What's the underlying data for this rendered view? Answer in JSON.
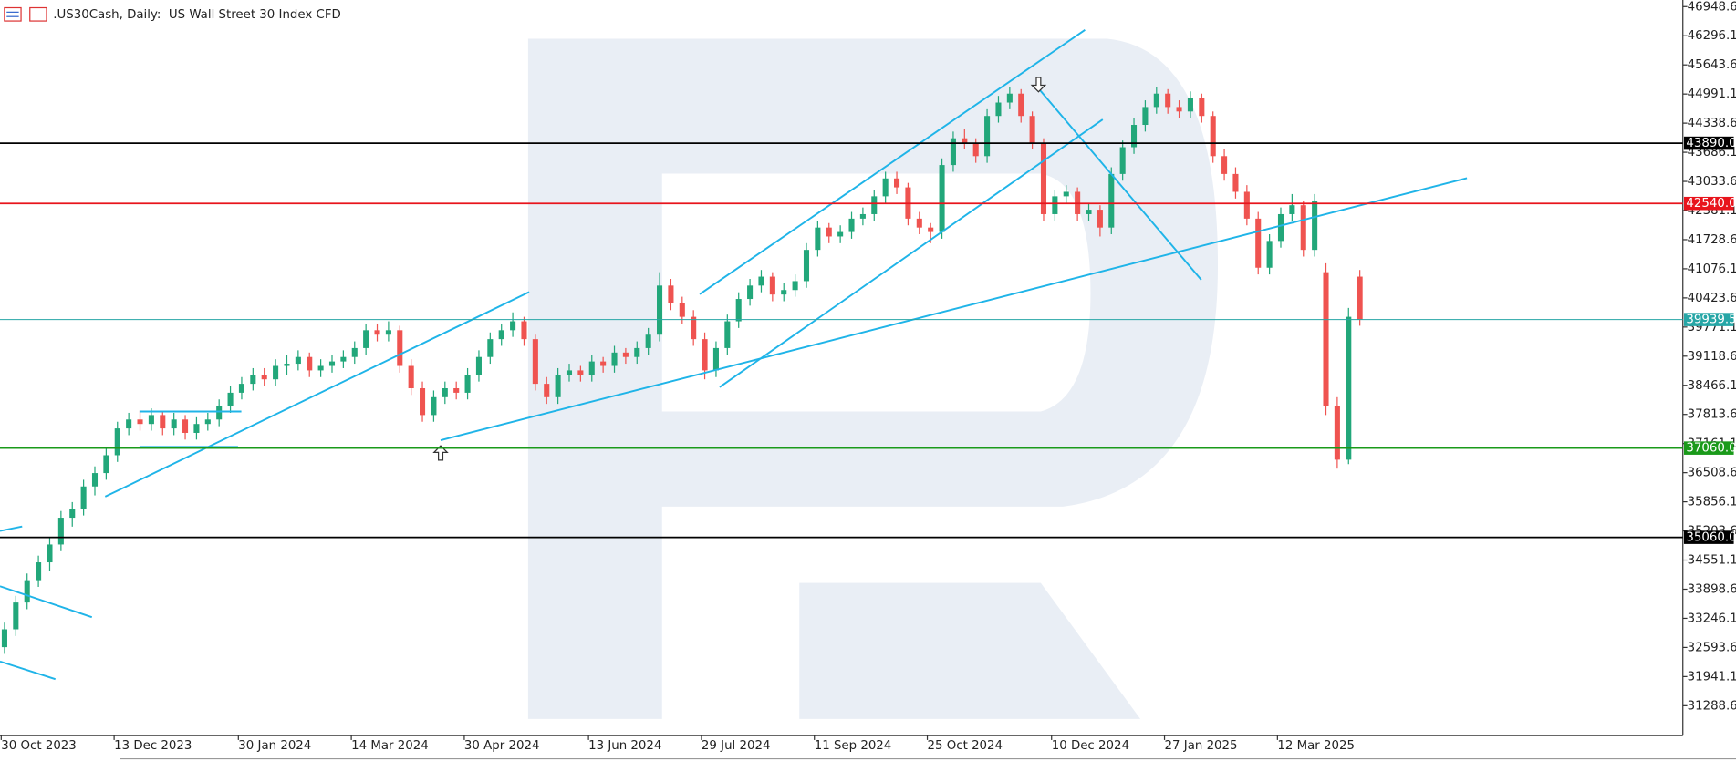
{
  "chart_data": {
    "type": "candlestick",
    "title": ".US30Cash, Daily:  US Wall Street 30 Index CFD",
    "up_color": "#22a77a",
    "down_color": "#ef5350",
    "ylim": [
      30620,
      47097
    ],
    "yticks": [
      46948.6,
      46296.1,
      45643.6,
      44991.1,
      44338.6,
      43686.1,
      43033.6,
      42381.1,
      41728.6,
      41076.1,
      40423.6,
      39771.1,
      39118.6,
      38466.1,
      37813.6,
      37161.1,
      36508.6,
      35856.1,
      35203.6,
      34551.1,
      33898.6,
      33246.1,
      32593.6,
      31941.1,
      31288.6
    ],
    "xlim": [
      -0.4,
      148.6
    ],
    "xticks": [
      {
        "value": 0,
        "label": "30 Oct 2023"
      },
      {
        "value": 10,
        "label": "13 Dec 2023"
      },
      {
        "value": 21,
        "label": "30 Jan 2024"
      },
      {
        "value": 31,
        "label": "14 Mar 2024"
      },
      {
        "value": 41,
        "label": "30 Apr 2024"
      },
      {
        "value": 52,
        "label": "13 Jun 2024"
      },
      {
        "value": 62,
        "label": "29 Jul 2024"
      },
      {
        "value": 72,
        "label": "11 Sep 2024"
      },
      {
        "value": 82,
        "label": "25 Oct 2024"
      },
      {
        "value": 93,
        "label": "10 Dec 2024"
      },
      {
        "value": 103,
        "label": "27 Jan 2025"
      },
      {
        "value": 113,
        "label": "12 Mar 2025"
      }
    ],
    "levels": [
      {
        "value": 43890,
        "label": "43890.0",
        "color": "#000000"
      },
      {
        "value": 42540,
        "label": "42540.0",
        "color": "#e8141c"
      },
      {
        "value": 37060,
        "label": "37060.0",
        "color": "#1a9a1a"
      },
      {
        "value": 35060,
        "label": "35060.0",
        "color": "#000000"
      }
    ],
    "last_price": {
      "value": 39939.5,
      "color": "#26a6a6"
    },
    "candles": [
      [
        32600,
        33150,
        32450,
        33000
      ],
      [
        33000,
        33750,
        32850,
        33600
      ],
      [
        33600,
        34250,
        33450,
        34100
      ],
      [
        34100,
        34650,
        33950,
        34500
      ],
      [
        34500,
        35050,
        34300,
        34900
      ],
      [
        34900,
        35650,
        34750,
        35500
      ],
      [
        35500,
        35850,
        35300,
        35700
      ],
      [
        35700,
        36350,
        35550,
        36200
      ],
      [
        36200,
        36650,
        36000,
        36500
      ],
      [
        36500,
        37050,
        36350,
        36900
      ],
      [
        36900,
        37650,
        36750,
        37500
      ],
      [
        37500,
        37850,
        37350,
        37700
      ],
      [
        37700,
        37900,
        37450,
        37600
      ],
      [
        37600,
        37950,
        37450,
        37800
      ],
      [
        37800,
        37900,
        37350,
        37500
      ],
      [
        37500,
        37850,
        37350,
        37700
      ],
      [
        37700,
        37800,
        37250,
        37400
      ],
      [
        37400,
        37750,
        37250,
        37600
      ],
      [
        37600,
        37850,
        37450,
        37700
      ],
      [
        37700,
        38150,
        37550,
        38000
      ],
      [
        38000,
        38450,
        37850,
        38300
      ],
      [
        38300,
        38650,
        38150,
        38500
      ],
      [
        38500,
        38850,
        38350,
        38700
      ],
      [
        38700,
        38850,
        38450,
        38600
      ],
      [
        38600,
        39050,
        38450,
        38900
      ],
      [
        38900,
        39150,
        38700,
        38950
      ],
      [
        38950,
        39250,
        38800,
        39100
      ],
      [
        39100,
        39200,
        38650,
        38800
      ],
      [
        38800,
        39050,
        38650,
        38900
      ],
      [
        38900,
        39150,
        38750,
        39000
      ],
      [
        39000,
        39250,
        38850,
        39100
      ],
      [
        39100,
        39450,
        38950,
        39300
      ],
      [
        39300,
        39850,
        39150,
        39700
      ],
      [
        39700,
        39850,
        39450,
        39600
      ],
      [
        39600,
        39900,
        39450,
        39700
      ],
      [
        39700,
        39800,
        38750,
        38900
      ],
      [
        38900,
        39050,
        38250,
        38400
      ],
      [
        38400,
        38550,
        37650,
        37800
      ],
      [
        37800,
        38350,
        37650,
        38200
      ],
      [
        38200,
        38550,
        38050,
        38400
      ],
      [
        38400,
        38550,
        38150,
        38300
      ],
      [
        38300,
        38850,
        38150,
        38700
      ],
      [
        38700,
        39250,
        38550,
        39100
      ],
      [
        39100,
        39650,
        38950,
        39500
      ],
      [
        39500,
        39850,
        39350,
        39700
      ],
      [
        39700,
        40100,
        39550,
        39900
      ],
      [
        39900,
        40000,
        39350,
        39500
      ],
      [
        39500,
        39600,
        38350,
        38500
      ],
      [
        38500,
        38650,
        38050,
        38200
      ],
      [
        38200,
        38850,
        38050,
        38700
      ],
      [
        38700,
        38950,
        38550,
        38800
      ],
      [
        38800,
        38900,
        38550,
        38700
      ],
      [
        38700,
        39150,
        38550,
        39000
      ],
      [
        39000,
        39100,
        38750,
        38900
      ],
      [
        38900,
        39350,
        38750,
        39200
      ],
      [
        39200,
        39300,
        38950,
        39100
      ],
      [
        39100,
        39450,
        38950,
        39300
      ],
      [
        39300,
        39750,
        39150,
        39600
      ],
      [
        39600,
        41000,
        39450,
        40700
      ],
      [
        40700,
        40850,
        40150,
        40300
      ],
      [
        40300,
        40450,
        39850,
        40000
      ],
      [
        40000,
        40150,
        39350,
        39500
      ],
      [
        39500,
        39650,
        38600,
        38800
      ],
      [
        38800,
        39450,
        38650,
        39300
      ],
      [
        39300,
        40050,
        39150,
        39900
      ],
      [
        39900,
        40550,
        39750,
        40400
      ],
      [
        40400,
        40850,
        40250,
        40700
      ],
      [
        40700,
        41050,
        40550,
        40900
      ],
      [
        40900,
        41000,
        40350,
        40500
      ],
      [
        40500,
        40750,
        40350,
        40600
      ],
      [
        40600,
        40950,
        40450,
        40800
      ],
      [
        40800,
        41650,
        40650,
        41500
      ],
      [
        41500,
        42150,
        41350,
        42000
      ],
      [
        42000,
        42100,
        41650,
        41800
      ],
      [
        41800,
        42050,
        41650,
        41900
      ],
      [
        41900,
        42350,
        41750,
        42200
      ],
      [
        42200,
        42450,
        42050,
        42300
      ],
      [
        42300,
        42850,
        42150,
        42700
      ],
      [
        42700,
        43250,
        42550,
        43100
      ],
      [
        43100,
        43250,
        42750,
        42900
      ],
      [
        42900,
        43000,
        42050,
        42200
      ],
      [
        42200,
        42350,
        41850,
        42000
      ],
      [
        42000,
        42100,
        41650,
        41900
      ],
      [
        41900,
        43550,
        41750,
        43400
      ],
      [
        43400,
        44150,
        43250,
        44000
      ],
      [
        44000,
        44200,
        43750,
        43900
      ],
      [
        43900,
        44000,
        43450,
        43600
      ],
      [
        43600,
        44650,
        43450,
        44500
      ],
      [
        44500,
        44950,
        44350,
        44800
      ],
      [
        44800,
        45150,
        44650,
        45000
      ],
      [
        45000,
        45100,
        44350,
        44500
      ],
      [
        44500,
        44600,
        43750,
        43900
      ],
      [
        43900,
        44000,
        42150,
        42300
      ],
      [
        42300,
        42850,
        42150,
        42700
      ],
      [
        42700,
        42950,
        42550,
        42800
      ],
      [
        42800,
        42900,
        42150,
        42300
      ],
      [
        42300,
        42550,
        42150,
        42400
      ],
      [
        42400,
        42500,
        41800,
        42000
      ],
      [
        42000,
        43350,
        41850,
        43200
      ],
      [
        43200,
        43950,
        43050,
        43800
      ],
      [
        43800,
        44450,
        43650,
        44300
      ],
      [
        44300,
        44850,
        44150,
        44700
      ],
      [
        44700,
        45150,
        44550,
        45000
      ],
      [
        45000,
        45100,
        44550,
        44700
      ],
      [
        44700,
        44850,
        44450,
        44600
      ],
      [
        44600,
        45050,
        44450,
        44900
      ],
      [
        44900,
        45000,
        44350,
        44500
      ],
      [
        44500,
        44600,
        43450,
        43600
      ],
      [
        43600,
        43750,
        43050,
        43200
      ],
      [
        43200,
        43350,
        42650,
        42800
      ],
      [
        42800,
        42950,
        42050,
        42200
      ],
      [
        42200,
        42350,
        40950,
        41100
      ],
      [
        41100,
        41850,
        40950,
        41700
      ],
      [
        41700,
        42450,
        41550,
        42300
      ],
      [
        42300,
        42750,
        42150,
        42500
      ],
      [
        42500,
        42600,
        41350,
        41500
      ],
      [
        41500,
        42750,
        41350,
        42600
      ],
      [
        41000,
        41200,
        37800,
        38000
      ],
      [
        38000,
        38200,
        36600,
        36800
      ],
      [
        36800,
        40200,
        36700,
        40000
      ],
      [
        40900,
        41050,
        39800,
        39939.5
      ]
    ]
  }
}
